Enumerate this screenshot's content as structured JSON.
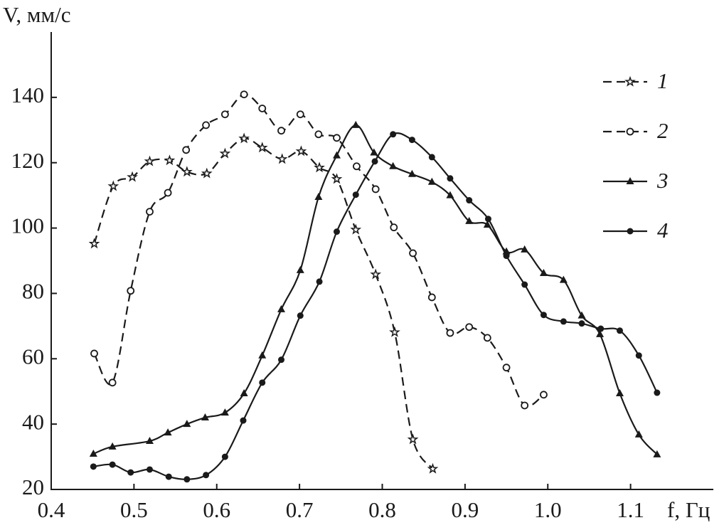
{
  "chart_data": {
    "type": "line",
    "y_label": "V, мм/с",
    "x_label": "f, Гц",
    "xlim": [
      0.4,
      1.2
    ],
    "ylim": [
      20,
      160
    ],
    "xticks": [
      0.4,
      0.5,
      0.6,
      0.7,
      0.8,
      0.9,
      {
        "value": 1,
        "label": "1.0"
      },
      1.1
    ],
    "yticks": [
      20,
      40,
      60,
      80,
      100,
      120,
      140
    ],
    "grid": false,
    "legend": "upper right",
    "series": [
      {
        "name": "1",
        "color": "#1a1a1a",
        "dashed": true,
        "marker": "star",
        "x": [
          0.452,
          0.475,
          0.498,
          0.519,
          0.543,
          0.564,
          0.588,
          0.61,
          0.633,
          0.655,
          0.679,
          0.702,
          0.724,
          0.745,
          0.768,
          0.792,
          0.815,
          0.837,
          0.861
        ],
        "values": [
          95.2,
          112.8,
          115.6,
          120.4,
          120.7,
          117.2,
          116.7,
          122.8,
          127.4,
          124.6,
          121.1,
          123.5,
          118.5,
          115,
          99.5,
          85.8,
          68.1,
          35.3,
          26.3
        ]
      },
      {
        "name": "2",
        "color": "#1a1a1a",
        "dashed": true,
        "marker": "circle-open",
        "x": [
          0.452,
          0.474,
          0.496,
          0.519,
          0.541,
          0.563,
          0.587,
          0.61,
          0.633,
          0.655,
          0.678,
          0.701,
          0.723,
          0.745,
          0.769,
          0.792,
          0.814,
          0.837,
          0.86,
          0.882,
          0.905,
          0.927,
          0.95,
          0.972,
          0.995
        ],
        "values": [
          61.6,
          52.7,
          80.8,
          105,
          110.8,
          123.9,
          131.5,
          134.8,
          140.9,
          136.6,
          129.8,
          134.8,
          128.7,
          127.6,
          118.9,
          111.9,
          100.2,
          92.3,
          78.8,
          67.9,
          69.7,
          66.4,
          57.3,
          45.7,
          49
        ]
      },
      {
        "name": "3",
        "color": "#1a1a1a",
        "dashed": false,
        "marker": "triangle",
        "x": [
          0.451,
          0.474,
          0.519,
          0.541,
          0.564,
          0.586,
          0.61,
          0.633,
          0.655,
          0.678,
          0.701,
          0.723,
          0.745,
          0.768,
          0.79,
          0.813,
          0.836,
          0.86,
          0.882,
          0.905,
          0.927,
          0.95,
          0.972,
          0.995,
          1.019,
          1.041,
          1.063,
          1.087,
          1.11,
          1.132
        ],
        "values": [
          30.9,
          33.1,
          34.8,
          37.4,
          40,
          42,
          43.5,
          49.4,
          61,
          75.1,
          87.1,
          109.5,
          122.2,
          131.5,
          123.1,
          118.9,
          116.5,
          114.1,
          110,
          102.1,
          101,
          92.8,
          93.4,
          86.2,
          84.1,
          73.2,
          67.5,
          49.4,
          36.8,
          30.7
        ]
      },
      {
        "name": "4",
        "color": "#1a1a1a",
        "dashed": false,
        "marker": "circle",
        "x": [
          0.451,
          0.474,
          0.496,
          0.519,
          0.542,
          0.564,
          0.587,
          0.61,
          0.632,
          0.655,
          0.678,
          0.701,
          0.724,
          0.745,
          0.768,
          0.791,
          0.813,
          0.836,
          0.86,
          0.882,
          0.905,
          0.928,
          0.95,
          0.972,
          0.995,
          1.019,
          1.041,
          1.064,
          1.087,
          1.11,
          1.132
        ],
        "values": [
          27,
          27.6,
          25.2,
          26.1,
          23.9,
          23.1,
          24.4,
          30,
          41.1,
          52.7,
          59.7,
          73.2,
          83.6,
          98.9,
          110.2,
          120.4,
          128.7,
          127,
          121.7,
          115.2,
          108.5,
          102.8,
          91.5,
          82.7,
          73.4,
          71.4,
          70.8,
          69.2,
          68.6,
          61,
          49.6
        ]
      }
    ]
  }
}
